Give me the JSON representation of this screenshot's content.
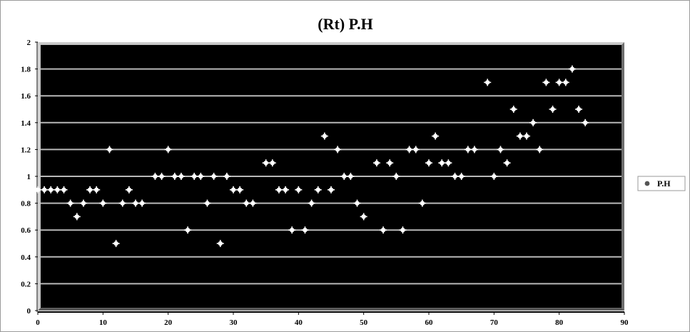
{
  "chart_data": {
    "type": "scatter",
    "title": "(Rt)  P.H",
    "xlabel": "",
    "ylabel": "",
    "xlim": [
      0,
      90
    ],
    "ylim": [
      0,
      2
    ],
    "xticks": [
      0,
      10,
      20,
      30,
      40,
      50,
      60,
      70,
      80,
      90
    ],
    "yticks": [
      0,
      0.2,
      0.4,
      0.6,
      0.8,
      1,
      1.2,
      1.4,
      1.6,
      1.8,
      2
    ],
    "grid": true,
    "legend_position": "right",
    "plot_background": "#000000",
    "gridline_color": "#b8b8b8",
    "marker_color": "#ffffff",
    "series": [
      {
        "name": "P.H",
        "points": [
          [
            0,
            0.9
          ],
          [
            1,
            0.9
          ],
          [
            2,
            0.9
          ],
          [
            3,
            0.9
          ],
          [
            4,
            0.9
          ],
          [
            5,
            0.8
          ],
          [
            6,
            0.7
          ],
          [
            7,
            0.8
          ],
          [
            8,
            0.9
          ],
          [
            9,
            0.9
          ],
          [
            10,
            0.8
          ],
          [
            11,
            1.2
          ],
          [
            12,
            0.5
          ],
          [
            13,
            0.8
          ],
          [
            14,
            0.9
          ],
          [
            15,
            0.8
          ],
          [
            16,
            0.8
          ],
          [
            18,
            1.0
          ],
          [
            19,
            1.0
          ],
          [
            20,
            1.2
          ],
          [
            21,
            1.0
          ],
          [
            22,
            1.0
          ],
          [
            23,
            0.6
          ],
          [
            24,
            1.0
          ],
          [
            25,
            1.0
          ],
          [
            26,
            0.8
          ],
          [
            27,
            1.0
          ],
          [
            28,
            0.5
          ],
          [
            29,
            1.0
          ],
          [
            30,
            0.9
          ],
          [
            31,
            0.9
          ],
          [
            32,
            0.8
          ],
          [
            33,
            0.8
          ],
          [
            35,
            1.1
          ],
          [
            36,
            1.1
          ],
          [
            37,
            0.9
          ],
          [
            38,
            0.9
          ],
          [
            39,
            0.6
          ],
          [
            40,
            0.9
          ],
          [
            41,
            0.6
          ],
          [
            42,
            0.8
          ],
          [
            43,
            0.9
          ],
          [
            44,
            1.3
          ],
          [
            45,
            0.9
          ],
          [
            46,
            1.2
          ],
          [
            47,
            1.0
          ],
          [
            48,
            1.0
          ],
          [
            49,
            0.8
          ],
          [
            50,
            0.7
          ],
          [
            52,
            1.1
          ],
          [
            53,
            0.6
          ],
          [
            54,
            1.1
          ],
          [
            55,
            1.0
          ],
          [
            56,
            0.6
          ],
          [
            57,
            1.2
          ],
          [
            58,
            1.2
          ],
          [
            59,
            0.8
          ],
          [
            60,
            1.1
          ],
          [
            61,
            1.3
          ],
          [
            62,
            1.1
          ],
          [
            63,
            1.1
          ],
          [
            64,
            1.0
          ],
          [
            65,
            1.0
          ],
          [
            66,
            1.2
          ],
          [
            67,
            1.2
          ],
          [
            69,
            1.7
          ],
          [
            70,
            1.0
          ],
          [
            71,
            1.2
          ],
          [
            72,
            1.1
          ],
          [
            73,
            1.5
          ],
          [
            74,
            1.3
          ],
          [
            75,
            1.3
          ],
          [
            76,
            1.4
          ],
          [
            77,
            1.2
          ],
          [
            78,
            1.7
          ],
          [
            79,
            1.5
          ],
          [
            80,
            1.7
          ],
          [
            81,
            1.7
          ],
          [
            82,
            1.8
          ],
          [
            83,
            1.5
          ],
          [
            84,
            1.4
          ]
        ]
      }
    ]
  }
}
